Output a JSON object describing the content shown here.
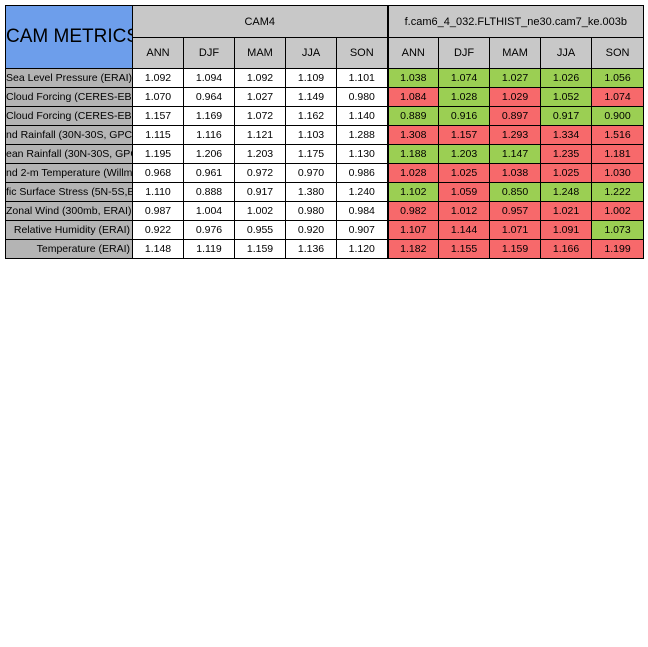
{
  "title": "CAM METRICS",
  "groups": [
    {
      "label": "CAM4"
    },
    {
      "label": "f.cam6_4_032.FLTHIST_ne30.cam7_ke.003b"
    }
  ],
  "seasons": [
    "ANN",
    "DJF",
    "MAM",
    "JJA",
    "SON"
  ],
  "colors": {
    "good": "#9bcf53",
    "bad": "#f7696b",
    "header": "#c8c8c8",
    "title_bg": "#6d9eeb"
  },
  "rows": [
    {
      "label": "Sea Level Pressure (ERAI)",
      "cam4": [
        "1.092",
        "1.094",
        "1.092",
        "1.109",
        "1.101"
      ],
      "exp": [
        "1.038",
        "1.074",
        "1.027",
        "1.026",
        "1.056"
      ],
      "status": [
        "good",
        "good",
        "good",
        "good",
        "good"
      ]
    },
    {
      "label": "Cloud Forcing (CERES-EB",
      "cam4": [
        "1.070",
        "0.964",
        "1.027",
        "1.149",
        "0.980"
      ],
      "exp": [
        "1.084",
        "1.028",
        "1.029",
        "1.052",
        "1.074"
      ],
      "status": [
        "bad",
        "good",
        "bad",
        "good",
        "bad"
      ]
    },
    {
      "label": "Cloud Forcing (CERES-EB",
      "cam4": [
        "1.157",
        "1.169",
        "1.072",
        "1.162",
        "1.140"
      ],
      "exp": [
        "0.889",
        "0.916",
        "0.897",
        "0.917",
        "0.900"
      ],
      "status": [
        "good",
        "good",
        "bad",
        "good",
        "good"
      ]
    },
    {
      "label": "nd Rainfall (30N-30S, GPC",
      "cam4": [
        "1.115",
        "1.116",
        "1.121",
        "1.103",
        "1.288"
      ],
      "exp": [
        "1.308",
        "1.157",
        "1.293",
        "1.334",
        "1.516"
      ],
      "status": [
        "bad",
        "bad",
        "bad",
        "bad",
        "bad"
      ]
    },
    {
      "label": "ean Rainfall (30N-30S, GPC",
      "cam4": [
        "1.195",
        "1.206",
        "1.203",
        "1.175",
        "1.130"
      ],
      "exp": [
        "1.188",
        "1.203",
        "1.147",
        "1.235",
        "1.181"
      ],
      "status": [
        "good",
        "good",
        "good",
        "bad",
        "bad"
      ]
    },
    {
      "label": "nd 2-m Temperature (Willm",
      "cam4": [
        "0.968",
        "0.961",
        "0.972",
        "0.970",
        "0.986"
      ],
      "exp": [
        "1.028",
        "1.025",
        "1.038",
        "1.025",
        "1.030"
      ],
      "status": [
        "bad",
        "bad",
        "bad",
        "bad",
        "bad"
      ]
    },
    {
      "label": "fic Surface Stress (5N-5S,E",
      "cam4": [
        "1.110",
        "0.888",
        "0.917",
        "1.380",
        "1.240"
      ],
      "exp": [
        "1.102",
        "1.059",
        "0.850",
        "1.248",
        "1.222"
      ],
      "status": [
        "good",
        "bad",
        "good",
        "good",
        "good"
      ]
    },
    {
      "label": "Zonal Wind (300mb, ERAI)",
      "cam4": [
        "0.987",
        "1.004",
        "1.002",
        "0.980",
        "0.984"
      ],
      "exp": [
        "0.982",
        "1.012",
        "0.957",
        "1.021",
        "1.002"
      ],
      "status": [
        "bad",
        "bad",
        "bad",
        "bad",
        "bad"
      ]
    },
    {
      "label": "Relative Humidity (ERAI)",
      "cam4": [
        "0.922",
        "0.976",
        "0.955",
        "0.920",
        "0.907"
      ],
      "exp": [
        "1.107",
        "1.144",
        "1.071",
        "1.091",
        "1.073"
      ],
      "status": [
        "bad",
        "bad",
        "bad",
        "bad",
        "good"
      ]
    },
    {
      "label": "Temperature (ERAI)",
      "cam4": [
        "1.148",
        "1.119",
        "1.159",
        "1.136",
        "1.120"
      ],
      "exp": [
        "1.182",
        "1.155",
        "1.159",
        "1.166",
        "1.199"
      ],
      "status": [
        "bad",
        "bad",
        "bad",
        "bad",
        "bad"
      ]
    }
  ]
}
